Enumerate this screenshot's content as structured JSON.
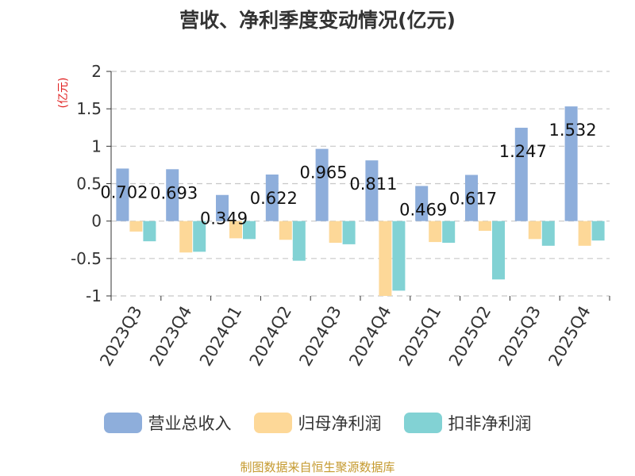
{
  "chart_data": {
    "type": "bar",
    "title": "营收、净利季度变动情况(亿元)",
    "ylabel": "(亿元)",
    "ylim": [
      -1,
      2
    ],
    "yticks": [
      2,
      1.5,
      1,
      0.5,
      0,
      -0.5,
      -1
    ],
    "ytick_labels": [
      "2",
      "1.5",
      "1",
      "0.5",
      "0",
      "-0.5",
      "-1"
    ],
    "grid": true,
    "legend_position": "bottom",
    "categories": [
      "2023Q3",
      "2023Q4",
      "2024Q1",
      "2024Q2",
      "2024Q3",
      "2024Q4",
      "2025Q1",
      "2025Q2",
      "2025Q3",
      "2025Q4"
    ],
    "series": [
      {
        "name": "营业总收入",
        "color": "#8eaedb",
        "values": [
          0.702,
          0.693,
          0.349,
          0.622,
          0.965,
          0.811,
          0.469,
          0.617,
          1.247,
          1.532
        ],
        "labels": [
          "0.702",
          "0.693",
          "0.349",
          "0.622",
          "0.965",
          "0.811",
          "0.469",
          "0.617",
          "1.247",
          "1.532"
        ]
      },
      {
        "name": "归母净利润",
        "color": "#fdd898",
        "values": [
          -0.14,
          -0.42,
          -0.23,
          -0.25,
          -0.29,
          -1.0,
          -0.28,
          -0.13,
          -0.24,
          -0.33
        ]
      },
      {
        "name": "扣非净利润",
        "color": "#82d2d4",
        "values": [
          -0.27,
          -0.41,
          -0.24,
          -0.53,
          -0.31,
          -0.93,
          -0.29,
          -0.78,
          -0.33,
          -0.26
        ]
      }
    ]
  },
  "source_note": "制图数据来自恒生聚源数据库"
}
